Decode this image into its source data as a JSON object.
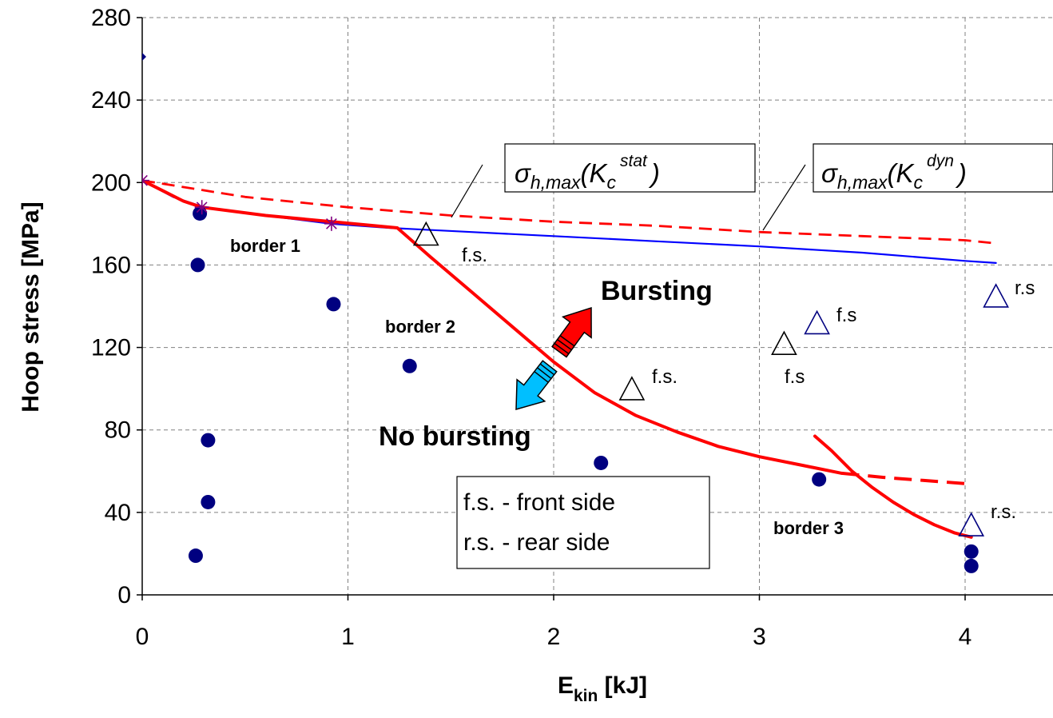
{
  "chart_data": {
    "type": "scatter",
    "title": "",
    "xlabel": {
      "main": "E",
      "sub": "kin",
      "unit": " [kJ]"
    },
    "ylabel": "Hoop stress [MPa]",
    "xlim": [
      0,
      4.4
    ],
    "ylim": [
      0,
      280
    ],
    "xticks": [
      0,
      1,
      2,
      3,
      4
    ],
    "yticks": [
      0,
      40,
      80,
      120,
      160,
      200,
      240,
      280
    ],
    "grid": {
      "horizontal": true,
      "vertical": true,
      "style": "dashed",
      "color": "#808080"
    },
    "colors": {
      "navy": "#000080",
      "red": "#ff0000",
      "blue_line": "#0000ff",
      "purple": "#800080",
      "arrow_up": "#ff0000",
      "arrow_down": "#00bfff"
    },
    "series": [
      {
        "key": "no_burst_points",
        "kind": "points",
        "marker": "circle",
        "color": "#000080",
        "points": [
          [
            0.28,
            185
          ],
          [
            0.27,
            160
          ],
          [
            0.93,
            141
          ],
          [
            1.3,
            111
          ],
          [
            0.32,
            75
          ],
          [
            0.32,
            45
          ],
          [
            0.26,
            19
          ],
          [
            2.23,
            64
          ],
          [
            3.29,
            56
          ],
          [
            4.03,
            21
          ],
          [
            4.03,
            14
          ]
        ]
      },
      {
        "key": "burst_front_side",
        "kind": "points",
        "marker": "triangle-open",
        "color": "#000000",
        "points": [
          [
            1.38,
            174
          ],
          [
            2.38,
            99
          ],
          [
            3.12,
            121
          ]
        ]
      },
      {
        "key": "burst_rear_side",
        "kind": "points",
        "marker": "triangle-open",
        "color": "#000080",
        "points": [
          [
            3.28,
            131
          ],
          [
            4.15,
            144
          ],
          [
            4.03,
            33
          ]
        ]
      },
      {
        "key": "diamond_point",
        "kind": "points",
        "marker": "diamond",
        "color": "#000080",
        "points": [
          [
            0.0,
            261
          ]
        ]
      },
      {
        "key": "star_points",
        "kind": "points",
        "marker": "star",
        "color": "#800080",
        "points": [
          [
            0.0,
            201
          ],
          [
            0.29,
            188
          ],
          [
            0.92,
            180
          ]
        ]
      },
      {
        "key": "sigma_stat_curve",
        "kind": "line",
        "color": "#0000ff",
        "width": 2.2,
        "dash": "",
        "points": [
          [
            0.0,
            201
          ],
          [
            0.15,
            193
          ],
          [
            0.3,
            188
          ],
          [
            0.6,
            184
          ],
          [
            0.92,
            180
          ],
          [
            1.2,
            178
          ],
          [
            1.6,
            176
          ],
          [
            2.0,
            174
          ],
          [
            2.5,
            171.5
          ],
          [
            3.0,
            169
          ],
          [
            3.5,
            166
          ],
          [
            4.0,
            162
          ],
          [
            4.15,
            161
          ]
        ]
      },
      {
        "key": "sigma_dyn_curve",
        "kind": "line",
        "color": "#ff0000",
        "width": 2.8,
        "dash": "16 9",
        "points": [
          [
            0.0,
            201
          ],
          [
            0.5,
            193
          ],
          [
            1.0,
            188
          ],
          [
            1.5,
            184
          ],
          [
            2.0,
            181
          ],
          [
            2.5,
            179
          ],
          [
            3.0,
            176
          ],
          [
            3.5,
            174
          ],
          [
            4.0,
            172
          ],
          [
            4.15,
            170.5
          ]
        ]
      },
      {
        "key": "border_curve_1_2",
        "kind": "line",
        "color": "#ff0000",
        "width": 4,
        "dash": "",
        "points": [
          [
            0.0,
            201
          ],
          [
            0.1,
            196
          ],
          [
            0.2,
            191
          ],
          [
            0.29,
            188
          ],
          [
            0.6,
            184
          ],
          [
            0.92,
            181
          ],
          [
            1.08,
            179.5
          ],
          [
            1.24,
            178
          ],
          [
            1.4,
            164
          ],
          [
            1.6,
            147
          ],
          [
            1.8,
            130
          ],
          [
            2.0,
            113
          ],
          [
            2.2,
            98
          ],
          [
            2.4,
            87
          ],
          [
            2.6,
            79
          ],
          [
            2.8,
            72
          ],
          [
            3.0,
            67
          ],
          [
            3.2,
            63
          ],
          [
            3.4,
            59
          ]
        ]
      },
      {
        "key": "border_3_dashed",
        "kind": "line",
        "color": "#ff0000",
        "width": 4,
        "dash": "22 11",
        "points": [
          [
            3.4,
            59
          ],
          [
            3.6,
            57
          ],
          [
            3.8,
            55.5
          ],
          [
            4.0,
            54
          ],
          [
            4.03,
            53.5
          ]
        ]
      },
      {
        "key": "border_3_curve",
        "kind": "line",
        "color": "#ff0000",
        "width": 4,
        "dash": "",
        "points": [
          [
            3.27,
            77
          ],
          [
            3.35,
            70
          ],
          [
            3.45,
            60
          ],
          [
            3.55,
            52
          ],
          [
            3.65,
            45
          ],
          [
            3.75,
            39
          ],
          [
            3.85,
            34
          ],
          [
            3.95,
            30
          ],
          [
            4.03,
            28
          ]
        ]
      }
    ],
    "annotations": {
      "border1": "border 1",
      "border2": "border 2",
      "border3": "border 3",
      "bursting": "Bursting",
      "no_bursting": "No bursting",
      "point_labels": [
        "f.s.",
        "f.s.",
        "f.s",
        "f.s",
        "r.s",
        "r.s."
      ],
      "legend_lines": [
        "f.s. - front side",
        "r.s. - rear side"
      ],
      "formula_stat": {
        "sigma": "σ",
        "sub": "h,max",
        "open": "(K",
        "c_sub": "c",
        "sup": "stat",
        "close": ")"
      },
      "formula_dyn": {
        "sigma": "σ",
        "sub": "h,max",
        "open": "(K",
        "c_sub": "c",
        "sup": "dyn",
        "close": ")"
      }
    }
  }
}
